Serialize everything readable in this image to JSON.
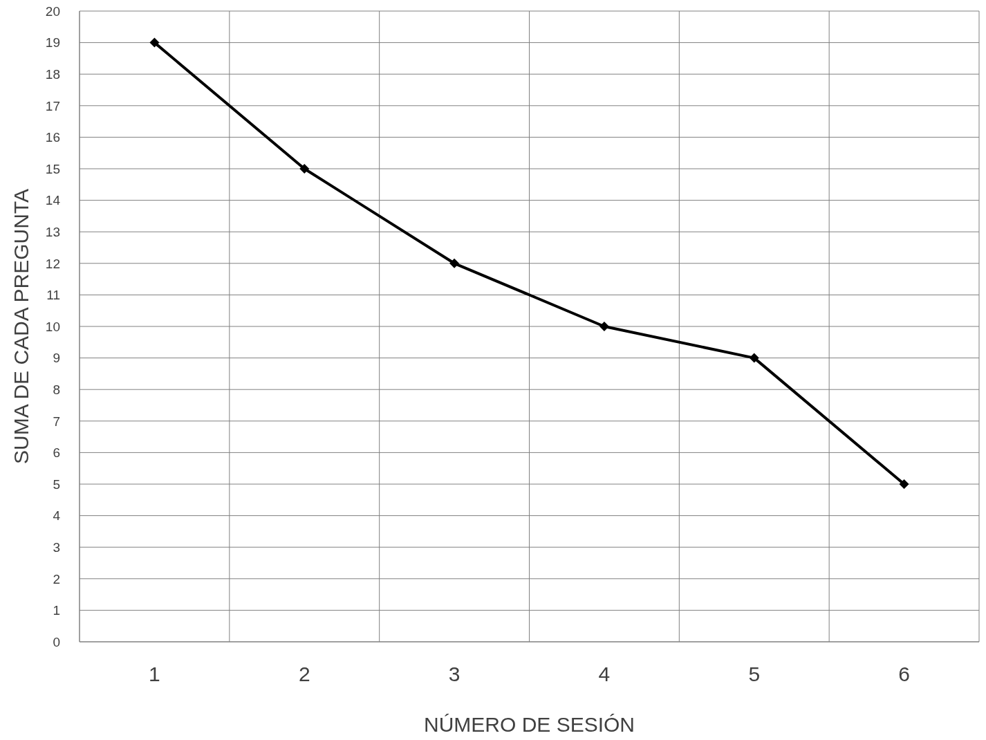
{
  "chart_data": {
    "type": "line",
    "xlabel": "NÚMERO DE SESIÓN",
    "ylabel": "SUMA DE CADA PREGUNTA",
    "categories": [
      "1",
      "2",
      "3",
      "4",
      "5",
      "6"
    ],
    "series": [
      {
        "color": "#000000",
        "values": [
          19,
          15,
          12,
          10,
          9,
          5
        ]
      }
    ],
    "ylim": [
      0,
      20
    ],
    "yticks": [
      0,
      1,
      2,
      3,
      4,
      5,
      6,
      7,
      8,
      9,
      10,
      11,
      12,
      13,
      14,
      15,
      16,
      17,
      18,
      19,
      20
    ],
    "grid": true,
    "marker": "diamond",
    "line_style": "solid"
  }
}
